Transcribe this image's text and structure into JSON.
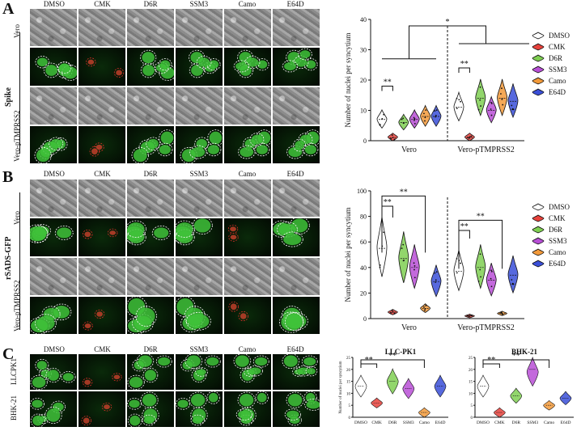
{
  "panels": {
    "A": {
      "letter": "A",
      "conditions": [
        "DMSO",
        "CMK",
        "D6R",
        "SSM3",
        "Camo",
        "E64D"
      ],
      "group_label": "Spike",
      "row_labels": [
        "Vero",
        "Vero-pTMPRSS2"
      ]
    },
    "B": {
      "letter": "B",
      "conditions": [
        "DMSO",
        "CMK",
        "D6R",
        "SSM3",
        "Camo",
        "E64D"
      ],
      "group_label": "rSADS-GFP",
      "row_labels": [
        "Vero",
        "Vero-pTMPRSS2"
      ]
    },
    "C": {
      "letter": "C",
      "conditions": [
        "DMSO",
        "CMK",
        "D6R",
        "SSM3",
        "Camo",
        "E64D"
      ],
      "row_labels": [
        "LLCPK1",
        "BHK-21"
      ]
    }
  },
  "colors": {
    "DMSO": "#ffffff",
    "CMK": "#e8423c",
    "D6R": "#7fcf52",
    "SSM3": "#b84fd6",
    "Camo": "#f39a3a",
    "E64D": "#3a4fd8"
  },
  "chart_data": [
    {
      "type": "violin",
      "panel": "A",
      "ylabel": "Number of nuclei per syncytium",
      "ylim": [
        0,
        40
      ],
      "yticks": [
        "0",
        "10",
        "20",
        "30",
        "40"
      ],
      "groups": [
        "Vero",
        "Vero-pTMPRSS2"
      ],
      "legend": [
        "DMSO",
        "CMK",
        "D6R",
        "SSM3",
        "Camo",
        "E64D"
      ],
      "series": [
        {
          "name": "DMSO",
          "values": [
            7,
            11
          ]
        },
        {
          "name": "CMK",
          "values": [
            1,
            1
          ]
        },
        {
          "name": "D6R",
          "values": [
            6,
            14
          ]
        },
        {
          "name": "SSM3",
          "values": [
            7,
            10
          ]
        },
        {
          "name": "Camo",
          "values": [
            8,
            14
          ]
        },
        {
          "name": "E64D",
          "values": [
            8,
            13
          ]
        }
      ],
      "annotations": [
        "**",
        "**",
        "*"
      ]
    },
    {
      "type": "violin",
      "panel": "B",
      "ylabel": "Number of nuclei per syncytium",
      "ylim": [
        0,
        100
      ],
      "yticks": [
        "0",
        "20",
        "40",
        "60",
        "80",
        "100"
      ],
      "groups": [
        "Vero",
        "Vero-pTMPRSS2"
      ],
      "legend": [
        "DMSO",
        "CMK",
        "D6R",
        "SSM3",
        "Camo",
        "E64D"
      ],
      "series": [
        {
          "name": "DMSO",
          "values": [
            55,
            37
          ]
        },
        {
          "name": "CMK",
          "values": [
            5,
            2
          ]
        },
        {
          "name": "D6R",
          "values": [
            47,
            40
          ]
        },
        {
          "name": "SSM3",
          "values": [
            40,
            30
          ]
        },
        {
          "name": "Camo",
          "values": [
            8,
            4
          ]
        },
        {
          "name": "E64D",
          "values": [
            29,
            34
          ]
        }
      ],
      "annotations": [
        "**",
        "**",
        "**",
        "**"
      ]
    },
    {
      "type": "violin",
      "panel": "C",
      "title": "LLC-PK1",
      "ylabel": "Number of nuclei per syncytium",
      "ylim": [
        0,
        25
      ],
      "yticks": [
        "0",
        "5",
        "10",
        "15",
        "20",
        "25"
      ],
      "categories": [
        "DMSO",
        "CMK",
        "D6R",
        "SSM3",
        "Camo",
        "E64D"
      ],
      "values": [
        13,
        6,
        15,
        12,
        2,
        13
      ],
      "annotations": [
        "**",
        "**"
      ]
    },
    {
      "type": "violin",
      "panel": "C",
      "title": "BHK-21",
      "ylim": [
        0,
        25
      ],
      "yticks": [
        "0",
        "5",
        "10",
        "15",
        "20",
        "25"
      ],
      "categories": [
        "DMSO",
        "CMK",
        "D6R",
        "SSM3",
        "Camo",
        "E64D"
      ],
      "values": [
        13,
        2,
        9,
        20,
        5,
        8
      ],
      "annotations": [
        "**",
        "**"
      ]
    }
  ]
}
